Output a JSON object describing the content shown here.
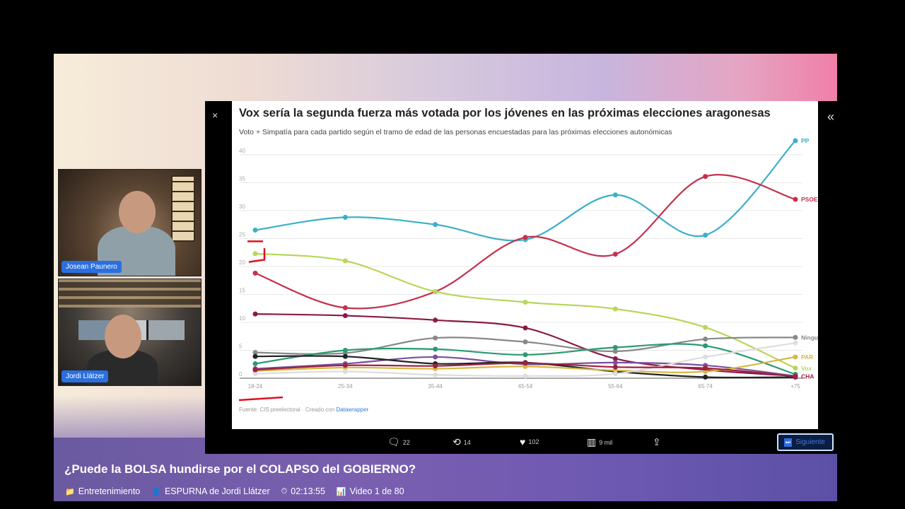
{
  "webcams": [
    {
      "label": "Josean Paunero"
    },
    {
      "label": "Jordi Llátzer"
    }
  ],
  "tweet": {
    "close_icon": "×",
    "collapse_icon": "«",
    "actions": {
      "replies": "22",
      "retweets": "14",
      "likes": "102",
      "views": "9 mil"
    },
    "next_label": "Siguiente"
  },
  "chart_data": {
    "type": "line",
    "title": "Vox sería la segunda fuerza más votada por los jóvenes en las próximas elecciones aragonesas",
    "subtitle": "Voto + Simpatía para cada partido según el tramo de edad de las personas encuestadas para las próximas elecciones autonómicas",
    "source_prefix": "Fuente: CIS preelectoral · Creado con ",
    "source_link": "Datawrapper",
    "categories": [
      "18-24",
      "25-34",
      "35-44",
      "45-54",
      "55-64",
      "65-74",
      "+75"
    ],
    "ylim": [
      0,
      42
    ],
    "yticks": [
      0,
      5,
      10,
      15,
      20,
      25,
      30,
      35,
      40
    ],
    "grid": true,
    "series": [
      {
        "name": "PP",
        "color": "#3ab0c8",
        "values": [
          26.5,
          28.8,
          27.5,
          24.8,
          32.8,
          25.6,
          42.5
        ]
      },
      {
        "name": "PSOE",
        "color": "#c4304c",
        "values": [
          18.8,
          12.6,
          15.5,
          25.2,
          22.2,
          36.1,
          32.0
        ]
      },
      {
        "name": "Vox",
        "color": "#b8d65a",
        "values": [
          22.3,
          21.0,
          15.5,
          13.6,
          12.4,
          9.1,
          1.8
        ]
      },
      {
        "name": "",
        "color": "#8a1a44",
        "values": [
          11.5,
          11.2,
          10.4,
          9.0,
          3.5,
          1.5,
          0.4
        ]
      },
      {
        "name": "Ninguno",
        "color": "#888888",
        "values": [
          4.6,
          4.5,
          7.2,
          6.5,
          4.8,
          7.0,
          7.3
        ]
      },
      {
        "name": "",
        "color": "#2a9a72",
        "values": [
          2.6,
          5.0,
          5.2,
          4.2,
          5.5,
          5.8,
          0.7
        ]
      },
      {
        "name": "",
        "color": "#7a4fa0",
        "values": [
          1.7,
          2.6,
          3.8,
          2.5,
          2.8,
          2.3,
          0.4
        ]
      },
      {
        "name": "",
        "color": "#222222",
        "values": [
          3.9,
          3.9,
          2.6,
          2.8,
          1.2,
          0.2,
          0.2
        ]
      },
      {
        "name": "PAR",
        "color": "#d8b840",
        "values": [
          1.3,
          1.9,
          1.7,
          2.1,
          1.4,
          1.2,
          3.8
        ]
      },
      {
        "name": "",
        "color": "#dddddd",
        "values": [
          0.8,
          1.2,
          0.6,
          0.4,
          0.8,
          3.8,
          6.3
        ]
      },
      {
        "name": "CHA",
        "color": "#a02040",
        "values": [
          1.5,
          2.3,
          2.2,
          2.7,
          2.0,
          1.8,
          0.3
        ]
      }
    ]
  },
  "video": {
    "title": "¿Puede la BOLSA hundirse por el COLAPSO del GOBIERNO?",
    "category": "Entretenimiento",
    "author": "ESPURNA de Jordi Llátzer",
    "duration": "02:13:55",
    "position": "Video 1 de 80"
  }
}
